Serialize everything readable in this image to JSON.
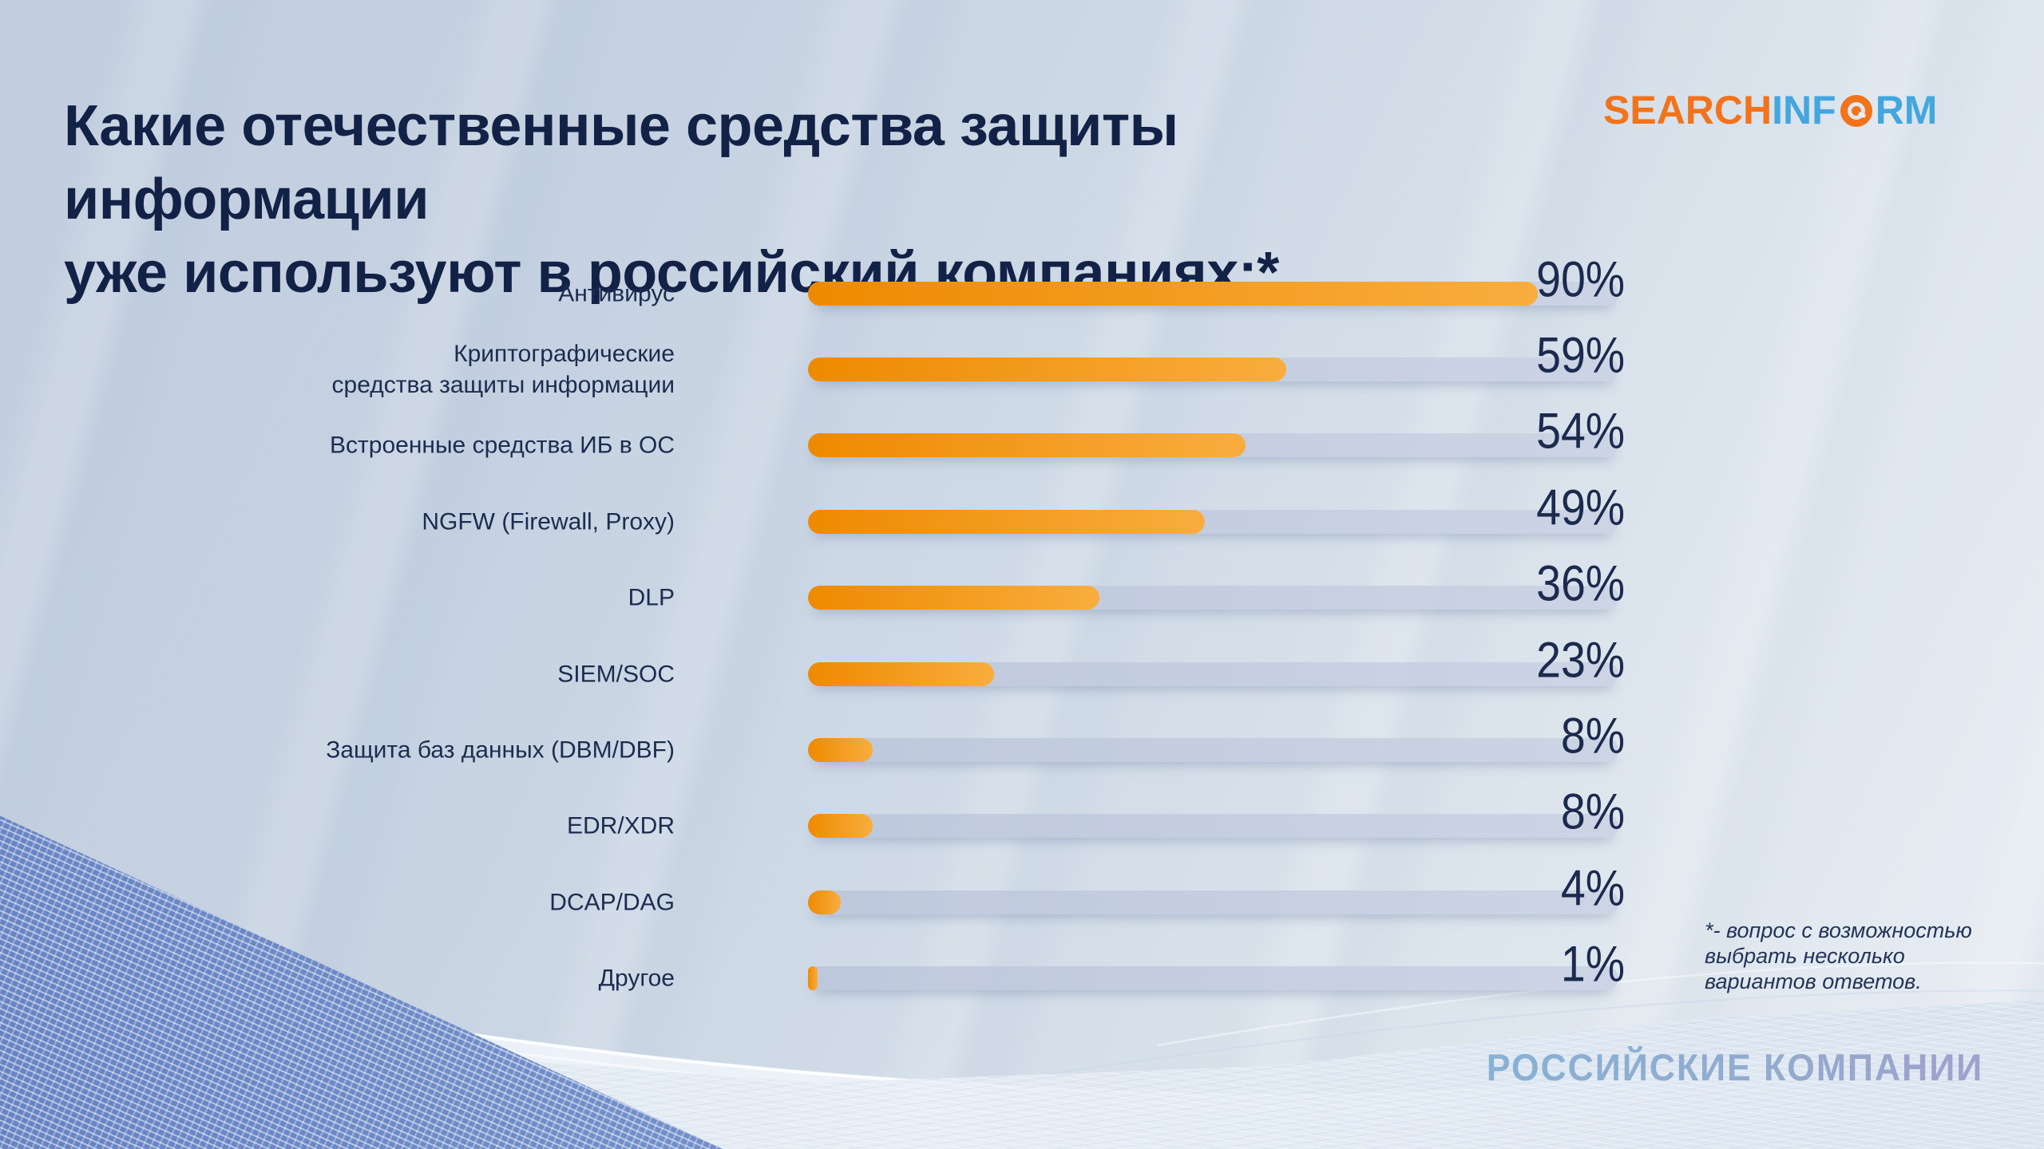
{
  "slide": {
    "title_line1": "Какие отечественные средства защиты информации",
    "title_line2": "уже используют в российский компаниях:*",
    "logo": {
      "word_orange": "SEARCH",
      "word_blue_1": "INF",
      "word_blue_2": "RM",
      "orange": "#F2731B",
      "blue": "#43A7DE"
    },
    "footnote_lines": [
      "*- вопрос с возможностью",
      "выбрать несколько",
      "вариантов ответов."
    ],
    "watermark": "РОССИЙСКИЕ КОМПАНИИ"
  },
  "chart_data": {
    "type": "bar",
    "orientation": "horizontal",
    "title": "Какие отечественные средства защиты информации уже используют в российский компаниях:*",
    "value_unit": "%",
    "xlim": [
      0,
      100
    ],
    "grid": false,
    "legend": false,
    "categories": [
      "Антивирус",
      "Криптографические средства защиты информации",
      "Встроенные средства ИБ в ОС",
      "NGFW (Firewall, Proxy)",
      "DLP",
      "SIEM/SOC",
      "Защита баз данных (DBM/DBF)",
      "EDR/XDR",
      "DCAP/DAG",
      "Другое"
    ],
    "categories_display": [
      "Антивирус",
      "Криптографические\nсредства защиты информации",
      "Встроенные средства ИБ в ОС",
      "NGFW (Firewall, Proxy)",
      "DLP",
      "SIEM/SOC",
      "Защита баз данных (DBM/DBF)",
      "EDR/XDR",
      "DCAP/DAG",
      "Другое"
    ],
    "values": [
      90,
      59,
      54,
      49,
      36,
      23,
      8,
      8,
      4,
      1
    ],
    "value_labels": [
      "90%",
      "59%",
      "54%",
      "49%",
      "36%",
      "23%",
      "8%",
      "8%",
      "4%",
      "1%"
    ],
    "bar_color_start": "#EE8A00",
    "bar_color_end": "#F9AD3E",
    "track_color": "#C6CDDF",
    "value_color": "#1B2A4E",
    "label_color": "#1C2C50"
  }
}
